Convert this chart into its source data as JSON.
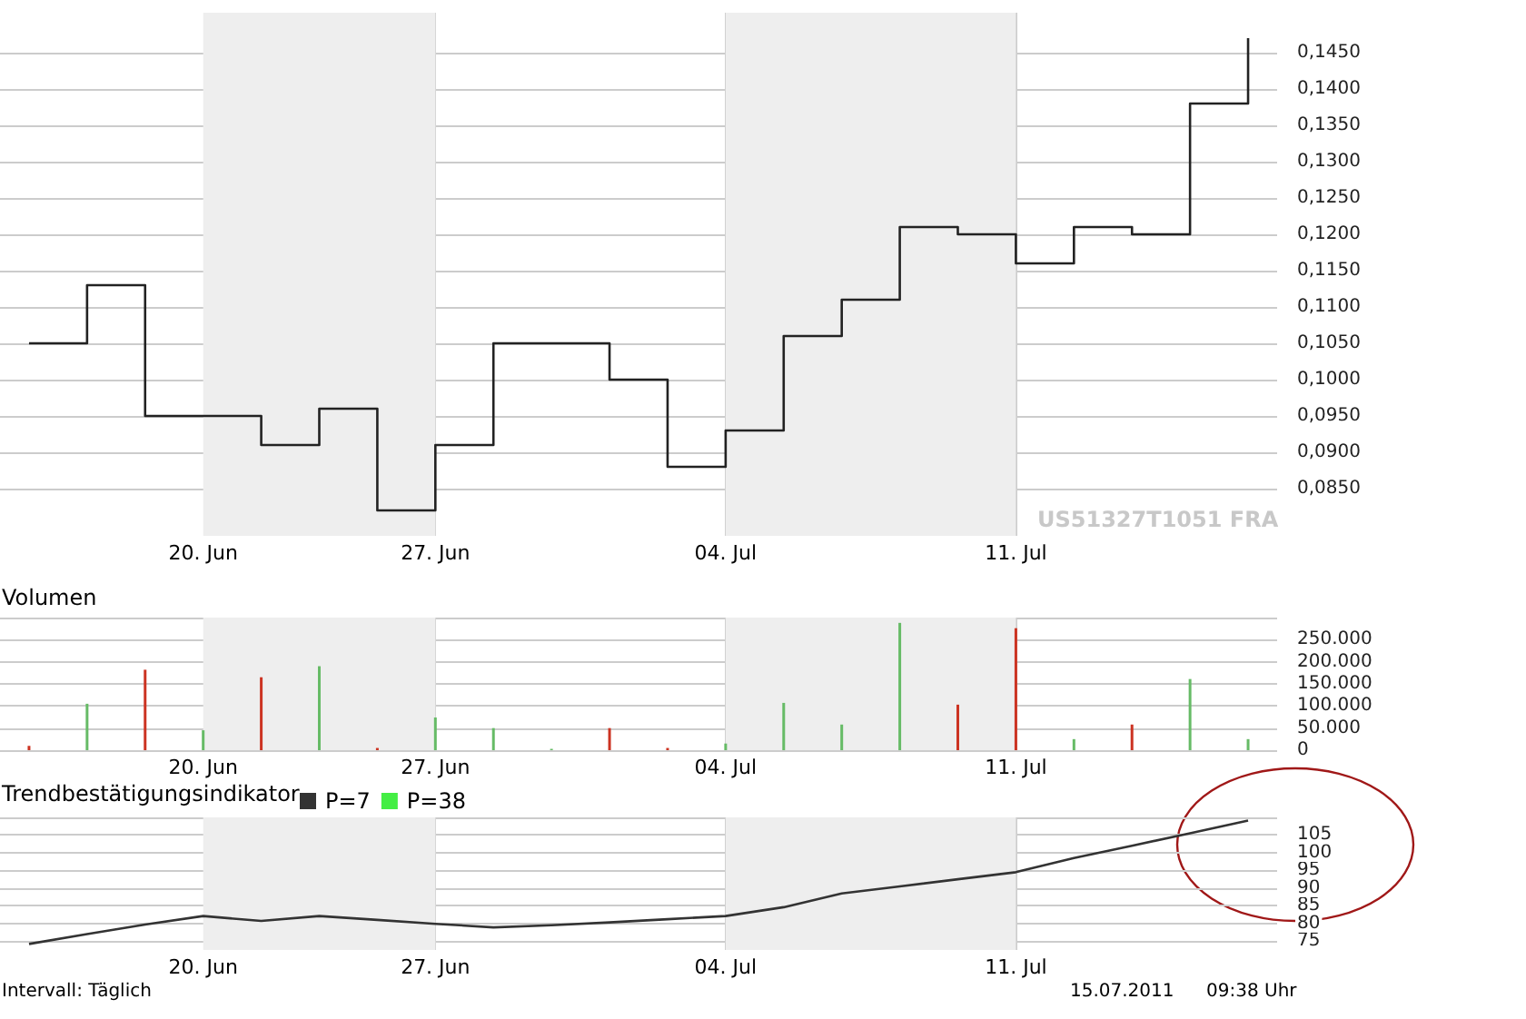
{
  "chart_data": [
    {
      "type": "step",
      "categories": [
        null,
        null,
        null,
        "20. Jun",
        null,
        null,
        null,
        "27. Jun",
        null,
        null,
        null,
        null,
        "04. Jul",
        null,
        null,
        null,
        null,
        "11. Jul",
        null,
        null,
        null,
        null
      ],
      "series": [
        {
          "color": "#222222",
          "values": [
            0.105,
            0.113,
            0.095,
            0.095,
            0.091,
            0.096,
            0.082,
            0.091,
            0.105,
            0.105,
            0.1,
            0.088,
            0.093,
            0.106,
            0.111,
            0.121,
            0.12,
            0.116,
            0.121,
            0.12,
            0.138,
            0.147
          ]
        }
      ],
      "ylim": [
        0.0785,
        0.1505
      ],
      "yticks": [
        {
          "value": 0.085,
          "label": "0,0850"
        },
        {
          "value": 0.09,
          "label": "0,0900"
        },
        {
          "value": 0.095,
          "label": "0,0950"
        },
        {
          "value": 0.1,
          "label": "0,1000"
        },
        {
          "value": 0.105,
          "label": "0,1050"
        },
        {
          "value": 0.11,
          "label": "0,1100"
        },
        {
          "value": 0.115,
          "label": "0,1150"
        },
        {
          "value": 0.12,
          "label": "0,1200"
        },
        {
          "value": 0.125,
          "label": "0,1250"
        },
        {
          "value": 0.13,
          "label": "0,1300"
        },
        {
          "value": 0.135,
          "label": "0,1350"
        },
        {
          "value": 0.14,
          "label": "0,1400"
        },
        {
          "value": 0.145,
          "label": "0,1450"
        }
      ],
      "bands": [
        {
          "axis": "x",
          "from": "20. Jun",
          "to": "27. Jun",
          "color": "#eeeeee"
        },
        {
          "axis": "x",
          "from": "04. Jul",
          "to": "11. Jul",
          "color": "#eeeeee"
        }
      ],
      "annotations": [
        "US51327T1051 FRA"
      ],
      "grid": true,
      "marker": "none",
      "line_style": "solid"
    },
    {
      "type": "bar",
      "title": "Volumen",
      "categories": [
        null,
        null,
        null,
        "20. Jun",
        null,
        null,
        null,
        "27. Jun",
        null,
        null,
        null,
        null,
        "04. Jul",
        null,
        null,
        null,
        null,
        "11. Jul",
        null,
        null,
        null,
        null
      ],
      "values": [
        10000,
        105000,
        182000,
        45000,
        165000,
        190000,
        5000,
        74000,
        50000,
        3000,
        50000,
        5000,
        15000,
        107000,
        58000,
        288000,
        103000,
        276000,
        25000,
        58000,
        161000,
        25000
      ],
      "colors": [
        "#cc3322",
        "#66bb66",
        "#cc3322",
        "#66bb66",
        "#cc3322",
        "#66bb66",
        "#cc3322",
        "#66bb66",
        "#66bb66",
        "#66bb66",
        "#cc3322",
        "#cc3322",
        "#66bb66",
        "#66bb66",
        "#66bb66",
        "#66bb66",
        "#cc3322",
        "#cc3322",
        "#66bb66",
        "#cc3322",
        "#66bb66",
        "#66bb66"
      ],
      "ylim": [
        0,
        300000
      ],
      "yticks": [
        0,
        {
          "value": 50000,
          "label": "50.000"
        },
        {
          "value": 100000,
          "label": "100.000"
        },
        {
          "value": 150000,
          "label": "150.000"
        },
        {
          "value": 200000,
          "label": "200.000"
        },
        {
          "value": 250000,
          "label": "250.000"
        },
        {
          "value": 300000,
          "label": null
        }
      ],
      "bands": [
        {
          "axis": "x",
          "from": "20. Jun",
          "to": "27. Jun",
          "color": "#eeeeee"
        },
        {
          "axis": "x",
          "from": "04. Jul",
          "to": "11. Jul",
          "color": "#eeeeee"
        }
      ],
      "grid": true
    },
    {
      "type": "line",
      "title": "Trendbestätigungsindikator",
      "categories": [
        null,
        null,
        null,
        "20. Jun",
        null,
        null,
        null,
        "27. Jun",
        null,
        null,
        null,
        null,
        "04. Jul",
        null,
        null,
        null,
        null,
        "11. Jul",
        null,
        null,
        null,
        null
      ],
      "series": [
        {
          "name": "P=7",
          "color": "#333333",
          "values": [
            74.2,
            77,
            79.7,
            82.1,
            80.7,
            82.1,
            81,
            79.9,
            78.9,
            79.5,
            80.3,
            81.2,
            82.1,
            84.6,
            88.5,
            90.5,
            92.5,
            94.5,
            98.5,
            102,
            105.5,
            109.1
          ]
        },
        {
          "name": "P=38",
          "color": "#44ee44",
          "values": [
            null,
            null,
            null,
            null,
            null,
            null,
            null,
            null,
            null,
            null,
            null,
            null,
            null,
            null,
            null,
            null,
            null,
            null,
            null,
            null,
            null,
            null
          ]
        }
      ],
      "ylim": [
        72.5,
        110
      ],
      "yticks": [
        75,
        80,
        85,
        90,
        95,
        100,
        105,
        {
          "value": 110,
          "label": null
        }
      ],
      "bands": [
        {
          "axis": "x",
          "from": "20. Jun",
          "to": "27. Jun",
          "color": "#eeeeee"
        },
        {
          "axis": "x",
          "from": "04. Jul",
          "to": "11. Jul",
          "color": "#eeeeee"
        }
      ],
      "annotations": [
        "Intervall: Täglich",
        "15.07.2011",
        "09:38 Uhr"
      ],
      "legend": "top left",
      "grid": true,
      "marker": "none",
      "line_style": "solid"
    }
  ]
}
